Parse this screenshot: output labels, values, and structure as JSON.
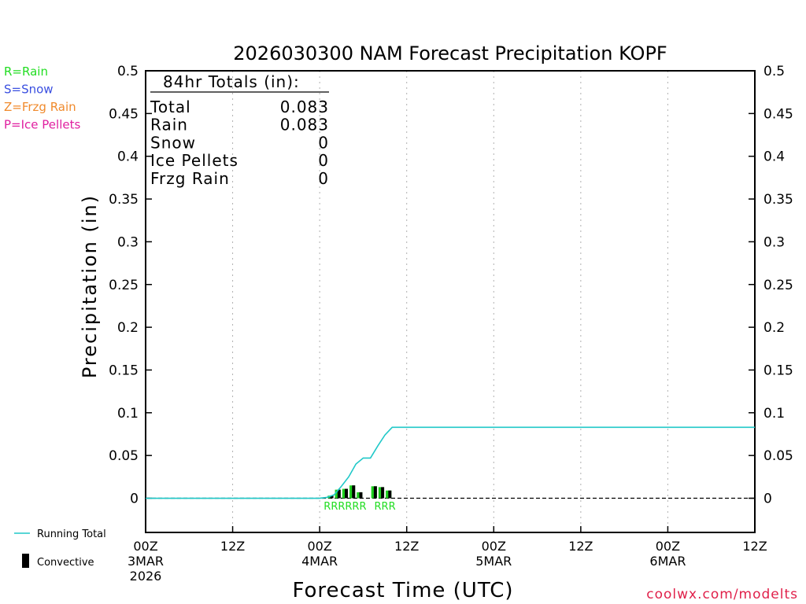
{
  "chart_data": {
    "type": "bar",
    "title": "2026030300 NAM Forecast Precipitation KOPF",
    "ylabel": "Precipitation (in)",
    "xlabel": "Forecast Time (UTC)",
    "ylim": [
      -0.04,
      0.5
    ],
    "xlim_hours": [
      0,
      84
    ],
    "yticks": [
      "0.5",
      "0.45",
      "0.4",
      "0.35",
      "0.3",
      "0.25",
      "0.2",
      "0.15",
      "0.1",
      "0.05",
      "0"
    ],
    "ytick_values": [
      0.5,
      0.45,
      0.4,
      0.35,
      0.3,
      0.25,
      0.2,
      0.15,
      0.1,
      0.05,
      0
    ],
    "xticks": [
      {
        "hour": 0,
        "l1": "00Z",
        "l2": "3MAR",
        "l3": "2026"
      },
      {
        "hour": 12,
        "l1": "12Z",
        "l2": "",
        "l3": ""
      },
      {
        "hour": 24,
        "l1": "00Z",
        "l2": "4MAR",
        "l3": ""
      },
      {
        "hour": 36,
        "l1": "12Z",
        "l2": "",
        "l3": ""
      },
      {
        "hour": 48,
        "l1": "00Z",
        "l2": "5MAR",
        "l3": ""
      },
      {
        "hour": 60,
        "l1": "12Z",
        "l2": "",
        "l3": ""
      },
      {
        "hour": 72,
        "l1": "00Z",
        "l2": "6MAR",
        "l3": ""
      },
      {
        "hour": 84,
        "l1": "12Z",
        "l2": "",
        "l3": ""
      }
    ],
    "bars": [
      {
        "hour": 25,
        "value": 0.001,
        "ptype": "R"
      },
      {
        "hour": 26,
        "value": 0.003,
        "ptype": "R"
      },
      {
        "hour": 27,
        "value": 0.01,
        "ptype": "R"
      },
      {
        "hour": 28,
        "value": 0.011,
        "ptype": "R"
      },
      {
        "hour": 29,
        "value": 0.015,
        "ptype": "R"
      },
      {
        "hour": 30,
        "value": 0.007,
        "ptype": "R"
      },
      {
        "hour": 32,
        "value": 0.014,
        "ptype": "R"
      },
      {
        "hour": 33,
        "value": 0.013,
        "ptype": "R"
      },
      {
        "hour": 34,
        "value": 0.009,
        "ptype": "R"
      }
    ],
    "running_total": {
      "hours": [
        0,
        24,
        25,
        26,
        27,
        28,
        29,
        30,
        31,
        32,
        33,
        34,
        84
      ],
      "values": [
        0,
        0,
        0.001,
        0.004,
        0.014,
        0.025,
        0.04,
        0.047,
        0.047,
        0.061,
        0.074,
        0.083,
        0.083
      ]
    },
    "ptype_labels": [
      {
        "text": "RRRRRR",
        "hour": 27.5
      },
      {
        "text": "RRR",
        "hour": 33
      }
    ],
    "totals_box": {
      "heading": "84hr Totals (in):",
      "rows": [
        {
          "label": "Total",
          "value": "0.083"
        },
        {
          "label": "Rain",
          "value": "0.083"
        },
        {
          "label": "Snow",
          "value": "0"
        },
        {
          "label": "Ice Pellets",
          "value": "0"
        },
        {
          "label": "Frzg Rain",
          "value": "0"
        }
      ]
    },
    "ptype_legend": [
      {
        "text": "R=Rain",
        "color": "#22dd22"
      },
      {
        "text": "S=Snow",
        "color": "#3a4fe0"
      },
      {
        "text": "Z=Frzg Rain",
        "color": "#f08a2c"
      },
      {
        "text": "P=Ice Pellets",
        "color": "#e01fa0"
      }
    ],
    "legend": {
      "running_total": "Running Total",
      "convective": "Convective"
    },
    "colors": {
      "running_total": "#20c8c8",
      "bar": "#1fd01f",
      "convective": "#000000",
      "rain_label": "#22dd22"
    },
    "credit": "coolwx.com/modelts",
    "credit_color": "#e0204a"
  }
}
